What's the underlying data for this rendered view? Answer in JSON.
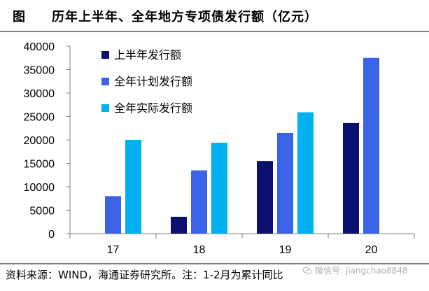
{
  "header": {
    "label": "图",
    "title": "历年上半年、全年地方专项债发行额（亿元）"
  },
  "footer": {
    "source": "资料来源：WIND，海通证券研究所。注：1-2月为累计同比"
  },
  "watermark": {
    "text": "微信号: jiangchao8848"
  },
  "chart_data": {
    "type": "bar",
    "categories": [
      "17",
      "18",
      "19",
      "20"
    ],
    "series": [
      {
        "name": "上半年发行额",
        "values": [
          0,
          3600,
          15500,
          23600
        ],
        "color": "#0b0f6e"
      },
      {
        "name": "全年计划发行额",
        "values": [
          8000,
          13500,
          21500,
          37500
        ],
        "color": "#3b63e8"
      },
      {
        "name": "全年实际发行额",
        "values": [
          20000,
          19400,
          25900,
          null
        ],
        "color": "#00b0f0"
      }
    ],
    "ylim": [
      0,
      40000
    ],
    "yticks": [
      "0",
      "5000",
      "10000",
      "15000",
      "20000",
      "25000",
      "30000",
      "35000",
      "40000"
    ],
    "grid": false,
    "legend": "top-left"
  }
}
